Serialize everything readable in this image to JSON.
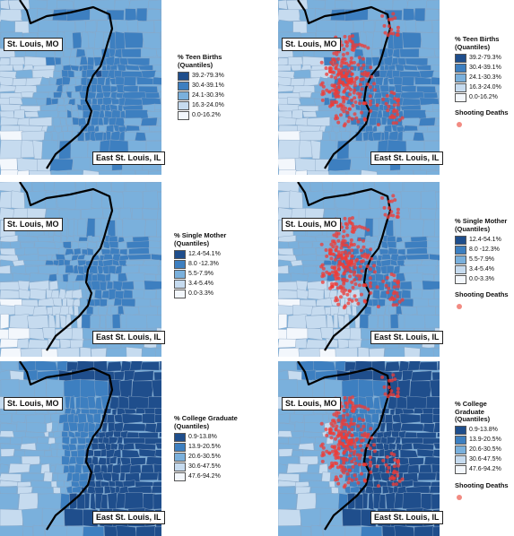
{
  "cities": {
    "missouri": "St. Louis, MO",
    "illinois": "East St. Louis, IL"
  },
  "colors": [
    "#1f4e8c",
    "#3d7fc0",
    "#7ab0dc",
    "#c6dbef",
    "#f3f7fc"
  ],
  "shooting_color": "#ef3b36",
  "shooting_label": "Shooting Deaths",
  "panels": [
    {
      "title": "% Teen Births",
      "subtitle": "(Quantiles)",
      "ranges": [
        "39.2-79.3%",
        "30.4-39.1%",
        "24.1-30.3%",
        "16.3-24.0%",
        "0.0-16.2%"
      ],
      "shootings": false
    },
    {
      "title": "% Teen Births",
      "subtitle": "(Quantiles)",
      "ranges": [
        "39.2-79.3%",
        "30.4-39.1%",
        "24.1-30.3%",
        "16.3-24.0%",
        "0.0-16.2%"
      ],
      "shootings": true
    },
    {
      "title": "% Single Mother",
      "subtitle": "(Quantiles)",
      "ranges": [
        "12.4-54.1%",
        "8.0 -12.3%",
        "5.5-7.9%",
        "3.4-5.4%",
        "0.0-3.3%"
      ],
      "shootings": false
    },
    {
      "title": "% Single Mother",
      "subtitle": "(Quantiles)",
      "ranges": [
        "12.4-54.1%",
        "8.0 -12.3%",
        "5.5-7.9%",
        "3.4-5.4%",
        "0.0-3.3%"
      ],
      "shootings": true
    },
    {
      "title": "% College Graduate",
      "subtitle": "(Quantiles)",
      "ranges": [
        "0.9-13.8%",
        "13.9-20.5%",
        "20.6-30.5%",
        "30.6-47.5%",
        "47.6-94.2%"
      ],
      "shootings": false
    },
    {
      "title": "% College Graduate",
      "subtitle": "(Quantiles)",
      "ranges": [
        "0.9-13.8%",
        "13.9-20.5%",
        "20.6-30.5%",
        "30.6-47.5%",
        "47.6-94.2%"
      ],
      "shootings": true
    }
  ]
}
